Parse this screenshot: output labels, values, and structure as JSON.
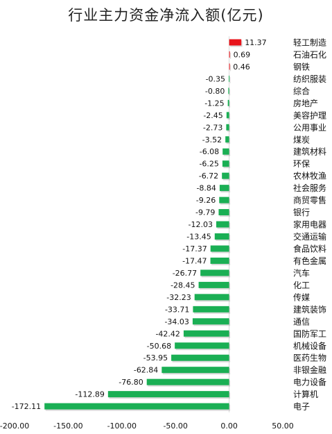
{
  "chart_data": {
    "type": "bar",
    "orientation": "horizontal",
    "title": "行业主力资金净流入额(亿元)",
    "xlim": [
      -200,
      50
    ],
    "xticks": [
      "-200.00",
      "-150.00",
      "-100.00",
      "-50.00",
      "0.00",
      "50.00"
    ],
    "xtick_values": [
      -200,
      -150,
      -100,
      -50,
      0,
      50
    ],
    "categories": [
      "轻工制造",
      "石油石化",
      "钢铁",
      "纺织服装",
      "综合",
      "房地产",
      "美容护理",
      "公用事业",
      "煤炭",
      "建筑材料",
      "环保",
      "农林牧渔",
      "社会服务",
      "商贸零售",
      "银行",
      "家用电器",
      "交通运输",
      "食品饮料",
      "有色金属",
      "汽车",
      "化工",
      "传媒",
      "建筑装饰",
      "通信",
      "国防军工",
      "机械设备",
      "医药生物",
      "非银金融",
      "电力设备",
      "计算机",
      "电子"
    ],
    "values": [
      11.37,
      0.69,
      0.46,
      -0.35,
      -0.8,
      -1.25,
      -2.45,
      -2.73,
      -3.52,
      -6.08,
      -6.25,
      -6.72,
      -8.84,
      -9.26,
      -9.79,
      -12.03,
      -13.45,
      -17.37,
      -17.47,
      -26.77,
      -28.45,
      -32.23,
      -33.71,
      -34.03,
      -42.42,
      -50.68,
      -53.95,
      -62.84,
      -76.8,
      -112.89,
      -172.11
    ],
    "value_labels": [
      "11.37",
      "0.69",
      "0.46",
      "-0.35",
      "-0.80",
      "-1.25",
      "-2.45",
      "-2.73",
      "-3.52",
      "-6.08",
      "-6.25",
      "-6.72",
      "-8.84",
      "-9.26",
      "-9.79",
      "-12.03",
      "-13.45",
      "-17.37",
      "-17.47",
      "-26.77",
      "-28.45",
      "-32.23",
      "-33.71",
      "-34.03",
      "-42.42",
      "-50.68",
      "-53.95",
      "-62.84",
      "-76.80",
      "-112.89",
      "-172.11"
    ],
    "positive_color": "#e8141b",
    "negative_color": "#1aaf54",
    "grid": false,
    "legend": "none"
  }
}
